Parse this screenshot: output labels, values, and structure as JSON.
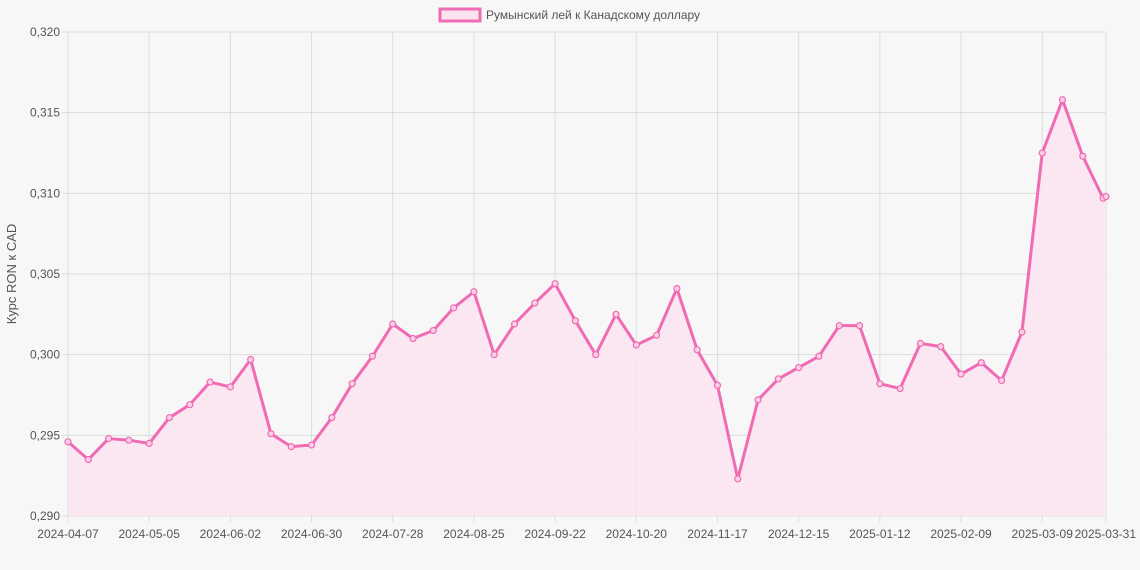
{
  "chart_data": {
    "type": "line",
    "title": "",
    "xlabel": "",
    "ylabel": "Курс RON к CAD",
    "ylim": [
      0.29,
      0.32
    ],
    "yticks": [
      "0,290",
      "0,295",
      "0,300",
      "0,305",
      "0,310",
      "0,315",
      "0,320"
    ],
    "xticks": [
      "2024-04-07",
      "2024-05-05",
      "2024-06-02",
      "2024-06-30",
      "2024-07-28",
      "2024-08-25",
      "2024-09-22",
      "2024-10-20",
      "2024-11-17",
      "2024-12-15",
      "2025-01-12",
      "2025-02-09",
      "2025-03-09",
      "2025-03-31"
    ],
    "grid": true,
    "legend_position": "top-center",
    "colors": {
      "line": "#f06bb4",
      "fill": "#f9e4ef",
      "grid": "#dddddd",
      "background": "#f7f7f7"
    },
    "series": [
      {
        "name": "Румынский лей к Канадскому доллару",
        "x": [
          "2024-04-07",
          "2024-04-14",
          "2024-04-21",
          "2024-04-28",
          "2024-05-05",
          "2024-05-12",
          "2024-05-19",
          "2024-05-26",
          "2024-06-02",
          "2024-06-09",
          "2024-06-16",
          "2024-06-23",
          "2024-06-30",
          "2024-07-07",
          "2024-07-14",
          "2024-07-21",
          "2024-07-28",
          "2024-08-04",
          "2024-08-11",
          "2024-08-18",
          "2024-08-25",
          "2024-09-01",
          "2024-09-08",
          "2024-09-15",
          "2024-09-22",
          "2024-09-29",
          "2024-10-06",
          "2024-10-13",
          "2024-10-20",
          "2024-10-27",
          "2024-11-03",
          "2024-11-10",
          "2024-11-17",
          "2024-11-24",
          "2024-12-01",
          "2024-12-08",
          "2024-12-15",
          "2024-12-22",
          "2024-12-29",
          "2025-01-05",
          "2025-01-12",
          "2025-01-19",
          "2025-01-26",
          "2025-02-02",
          "2025-02-09",
          "2025-02-16",
          "2025-02-23",
          "2025-03-02",
          "2025-03-09",
          "2025-03-16",
          "2025-03-23",
          "2025-03-30",
          "2025-03-31"
        ],
        "values": [
          0.2946,
          0.2935,
          0.2948,
          0.2947,
          0.2945,
          0.2961,
          0.2969,
          0.2983,
          0.298,
          0.2997,
          0.2951,
          0.2943,
          0.2944,
          0.2961,
          0.2982,
          0.2999,
          0.3019,
          0.301,
          0.3015,
          0.3029,
          0.3039,
          0.3,
          0.3019,
          0.3032,
          0.3044,
          0.3021,
          0.3,
          0.3025,
          0.3006,
          0.3012,
          0.3041,
          0.3003,
          0.2981,
          0.2923,
          0.2972,
          0.2985,
          0.2992,
          0.2999,
          0.3018,
          0.3018,
          0.2982,
          0.2979,
          0.3007,
          0.3005,
          0.2988,
          0.2995,
          0.2984,
          0.3014,
          0.3125,
          0.3158,
          0.3123,
          0.3097,
          0.3098
        ]
      }
    ]
  }
}
